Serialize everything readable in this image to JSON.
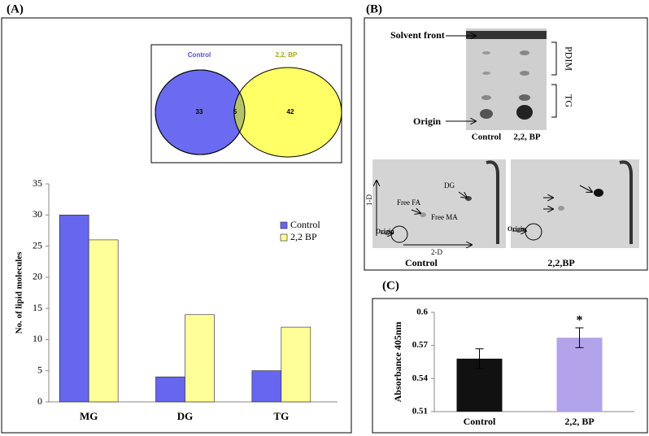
{
  "panel_labels": [
    "(A)",
    "(B)",
    "(C)"
  ],
  "chart_data": [
    {
      "type": "venn",
      "sets": [
        {
          "name": "Control",
          "color": "#6b6bf2"
        },
        {
          "name": "2,2, BP",
          "color": "#ffff66"
        }
      ],
      "values": {
        "only_first": 33,
        "both": 5,
        "only_second": 42
      }
    },
    {
      "type": "bar",
      "y_label": "No. of lipid molecules",
      "categories": [
        "MG",
        "DG",
        "TG"
      ],
      "series": [
        {
          "name": "Control",
          "color": "#6666ee",
          "values": [
            30,
            4,
            5
          ]
        },
        {
          "name": "2,2 BP",
          "color": "#ffff99",
          "values": [
            26,
            14,
            12
          ]
        }
      ],
      "ylim": [
        0,
        35
      ],
      "yticks": [
        0,
        5,
        10,
        15,
        20,
        25,
        30,
        35
      ],
      "legend": "right"
    },
    {
      "type": "errorbar",
      "y_label": "Absorbance 405nm",
      "categories": [
        "Control",
        "2,2, BP"
      ],
      "values": [
        0.558,
        0.577
      ],
      "errors": [
        0.009,
        0.009
      ],
      "colors": [
        "#111111",
        "#b3a3ea"
      ],
      "annotation": "*",
      "ylim": [
        0.51,
        0.6
      ],
      "yticks": [
        0.51,
        0.54,
        0.57,
        0.6
      ]
    }
  ],
  "tlc": {
    "top": {
      "solvent_front": "Solvent front",
      "origin": "Origin",
      "lanes": [
        "Control",
        "2,2, BP"
      ],
      "pdim": "PDIM",
      "tg": "TG"
    },
    "bottom": {
      "dim1": "1-D",
      "dim2": "2-D",
      "free_fa": "Free FA",
      "dg": "DG",
      "free_ma": "Free MA",
      "origin": "Origin",
      "origin_2": "Origin",
      "captions": [
        "Control",
        "2,2,BP"
      ]
    }
  }
}
